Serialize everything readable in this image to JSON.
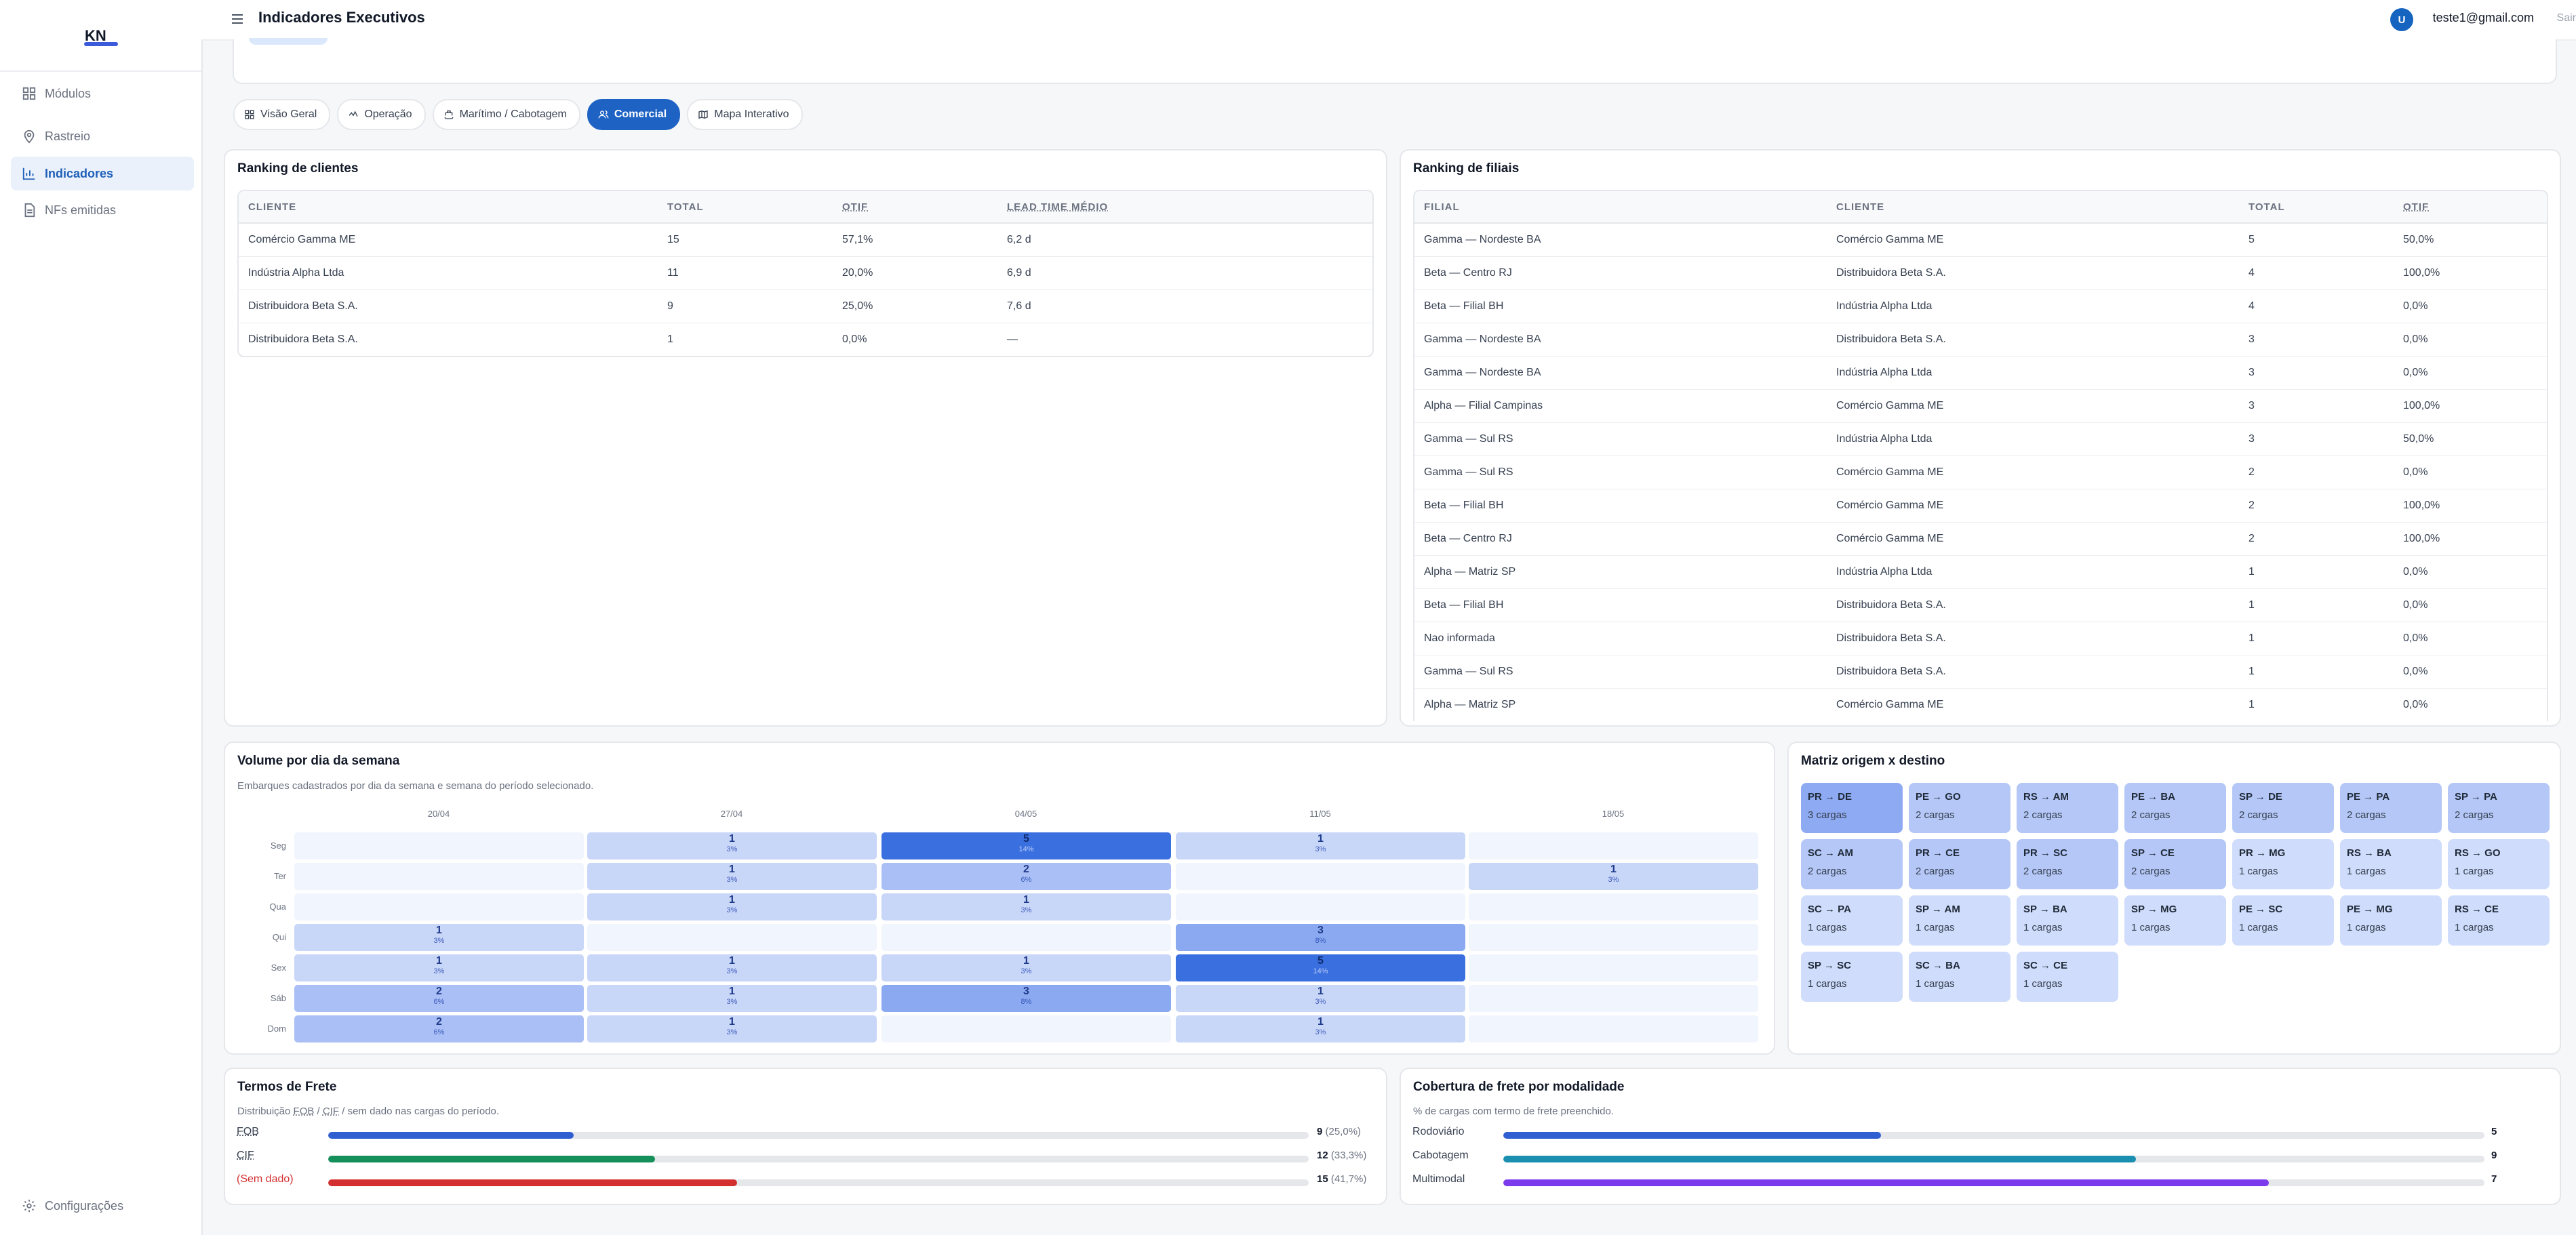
{
  "sidebar": {
    "logo_text": "KN",
    "items": [
      {
        "label": "Módulos",
        "icon": "grid-icon"
      },
      {
        "label": "Rastreio",
        "icon": "map-pin-icon"
      },
      {
        "label": "Indicadores",
        "icon": "chart-icon"
      },
      {
        "label": "NFs emitidas",
        "icon": "document-icon"
      }
    ],
    "settings_label": "Configurações"
  },
  "header": {
    "title": "Indicadores Executivos",
    "avatar_initial": "U",
    "user_email": "teste1@gmail.com",
    "logout_label": "Sair"
  },
  "tabs": [
    "Visão Geral",
    "Operação",
    "Marítimo / Cabotagem",
    "Comercial",
    "Mapa Interativo"
  ],
  "active_tab": "Comercial",
  "ranking_clientes": {
    "title": "Ranking de clientes",
    "headers": [
      "CLIENTE",
      "TOTAL",
      "OTIF",
      "LEAD TIME MÉDIO"
    ],
    "rows": [
      [
        "Comércio Gamma ME",
        "15",
        "57,1%",
        "6,2 d"
      ],
      [
        "Indústria Alpha Ltda",
        "11",
        "20,0%",
        "6,9 d"
      ],
      [
        "Distribuidora Beta S.A.",
        "9",
        "25,0%",
        "7,6 d"
      ],
      [
        "Distribuidora Beta S.A.",
        "1",
        "0,0%",
        "—"
      ]
    ]
  },
  "ranking_filiais": {
    "title": "Ranking de filiais",
    "headers": [
      "FILIAL",
      "CLIENTE",
      "TOTAL",
      "OTIF"
    ],
    "rows": [
      [
        "Gamma — Nordeste BA",
        "Comércio Gamma ME",
        "5",
        "50,0%"
      ],
      [
        "Beta — Centro RJ",
        "Distribuidora Beta S.A.",
        "4",
        "100,0%"
      ],
      [
        "Beta — Filial BH",
        "Indústria Alpha Ltda",
        "4",
        "0,0%"
      ],
      [
        "Gamma — Nordeste BA",
        "Distribuidora Beta S.A.",
        "3",
        "0,0%"
      ],
      [
        "Gamma — Nordeste BA",
        "Indústria Alpha Ltda",
        "3",
        "0,0%"
      ],
      [
        "Alpha — Filial Campinas",
        "Comércio Gamma ME",
        "3",
        "100,0%"
      ],
      [
        "Gamma — Sul RS",
        "Indústria Alpha Ltda",
        "3",
        "50,0%"
      ],
      [
        "Gamma — Sul RS",
        "Comércio Gamma ME",
        "2",
        "0,0%"
      ],
      [
        "Beta — Filial BH",
        "Comércio Gamma ME",
        "2",
        "100,0%"
      ],
      [
        "Beta — Centro RJ",
        "Comércio Gamma ME",
        "2",
        "100,0%"
      ],
      [
        "Alpha — Matriz SP",
        "Indústria Alpha Ltda",
        "1",
        "0,0%"
      ],
      [
        "Beta — Filial BH",
        "Distribuidora Beta S.A.",
        "1",
        "0,0%"
      ],
      [
        "Nao informada",
        "Distribuidora Beta S.A.",
        "1",
        "0,0%"
      ],
      [
        "Gamma — Sul RS",
        "Distribuidora Beta S.A.",
        "1",
        "0,0%"
      ],
      [
        "Alpha — Matriz SP",
        "Comércio Gamma ME",
        "1",
        "0,0%"
      ]
    ]
  },
  "volume": {
    "title": "Volume por dia da semana",
    "subtitle": "Embarques cadastrados por dia da semana e semana do período selecionado.",
    "weeks": [
      "20/04",
      "27/04",
      "04/05",
      "11/05",
      "18/05"
    ],
    "days": [
      "Seg",
      "Ter",
      "Qua",
      "Qui",
      "Sex",
      "Sáb",
      "Dom"
    ],
    "cells": [
      [
        {
          "n": "",
          "p": ""
        },
        {
          "n": "1",
          "p": "3%"
        },
        {
          "n": "5",
          "p": "14%"
        },
        {
          "n": "1",
          "p": "3%"
        },
        {
          "n": "",
          "p": ""
        }
      ],
      [
        {
          "n": "",
          "p": ""
        },
        {
          "n": "1",
          "p": "3%"
        },
        {
          "n": "2",
          "p": "6%"
        },
        {
          "n": "",
          "p": ""
        },
        {
          "n": "1",
          "p": "3%"
        }
      ],
      [
        {
          "n": "",
          "p": ""
        },
        {
          "n": "1",
          "p": "3%"
        },
        {
          "n": "1",
          "p": "3%"
        },
        {
          "n": "",
          "p": ""
        },
        {
          "n": "",
          "p": ""
        }
      ],
      [
        {
          "n": "1",
          "p": "3%"
        },
        {
          "n": "",
          "p": ""
        },
        {
          "n": "",
          "p": ""
        },
        {
          "n": "3",
          "p": "8%"
        },
        {
          "n": "",
          "p": ""
        }
      ],
      [
        {
          "n": "1",
          "p": "3%"
        },
        {
          "n": "1",
          "p": "3%"
        },
        {
          "n": "1",
          "p": "3%"
        },
        {
          "n": "5",
          "p": "14%"
        },
        {
          "n": "",
          "p": ""
        }
      ],
      [
        {
          "n": "2",
          "p": "6%"
        },
        {
          "n": "1",
          "p": "3%"
        },
        {
          "n": "3",
          "p": "8%"
        },
        {
          "n": "1",
          "p": "3%"
        },
        {
          "n": "",
          "p": ""
        }
      ],
      [
        {
          "n": "2",
          "p": "6%"
        },
        {
          "n": "1",
          "p": "3%"
        },
        {
          "n": "",
          "p": ""
        },
        {
          "n": "1",
          "p": "3%"
        },
        {
          "n": "",
          "p": ""
        }
      ]
    ]
  },
  "matriz": {
    "title": "Matriz origem x destino",
    "items": [
      {
        "route": "PR → DE",
        "count": "3 cargas"
      },
      {
        "route": "PE → GO",
        "count": "2 cargas"
      },
      {
        "route": "RS → AM",
        "count": "2 cargas"
      },
      {
        "route": "PE → BA",
        "count": "2 cargas"
      },
      {
        "route": "SP → DE",
        "count": "2 cargas"
      },
      {
        "route": "PE → PA",
        "count": "2 cargas"
      },
      {
        "route": "SP → PA",
        "count": "2 cargas"
      },
      {
        "route": "SC → AM",
        "count": "2 cargas"
      },
      {
        "route": "PR → CE",
        "count": "2 cargas"
      },
      {
        "route": "PR → SC",
        "count": "2 cargas"
      },
      {
        "route": "SP → CE",
        "count": "2 cargas"
      },
      {
        "route": "PR → MG",
        "count": "1 cargas"
      },
      {
        "route": "RS → BA",
        "count": "1 cargas"
      },
      {
        "route": "RS → GO",
        "count": "1 cargas"
      },
      {
        "route": "SC → PA",
        "count": "1 cargas"
      },
      {
        "route": "SP → AM",
        "count": "1 cargas"
      },
      {
        "route": "SP → BA",
        "count": "1 cargas"
      },
      {
        "route": "SP → MG",
        "count": "1 cargas"
      },
      {
        "route": "PE → SC",
        "count": "1 cargas"
      },
      {
        "route": "PE → MG",
        "count": "1 cargas"
      },
      {
        "route": "RS → CE",
        "count": "1 cargas"
      },
      {
        "route": "SP → SC",
        "count": "1 cargas"
      },
      {
        "route": "SC → BA",
        "count": "1 cargas"
      },
      {
        "route": "SC → CE",
        "count": "1 cargas"
      }
    ]
  },
  "termos": {
    "title": "Termos de Frete",
    "subtitle_pre": "Distribuição ",
    "subtitle_fob": "FOB",
    "subtitle_sep": " / ",
    "subtitle_cif": "CIF",
    "subtitle_post": " / sem dado nas cargas do período.",
    "rows": [
      {
        "label": "FOB",
        "value": "9",
        "pct": "(25,0%)",
        "fraction": 0.25,
        "color": "#2f5fd0"
      },
      {
        "label": "CIF",
        "value": "12",
        "pct": "(33,3%)",
        "fraction": 0.333,
        "color": "#15905a"
      },
      {
        "label": "(Sem dado)",
        "value": "15",
        "pct": "(41,7%)",
        "fraction": 0.417,
        "color": "#d32f2f"
      }
    ]
  },
  "cobertura": {
    "title": "Cobertura de frete por modalidade",
    "subtitle": "% de cargas com termo de frete preenchido.",
    "rows": [
      {
        "label": "Rodoviário",
        "value": "5",
        "fraction": 0.385,
        "color": "#2f5fd0"
      },
      {
        "label": "Cabotagem",
        "value": "9",
        "fraction": 0.645,
        "color": "#1b8fb0"
      },
      {
        "label": "Multimodal",
        "value": "7",
        "fraction": 0.78,
        "color": "#7c3aed"
      }
    ]
  }
}
